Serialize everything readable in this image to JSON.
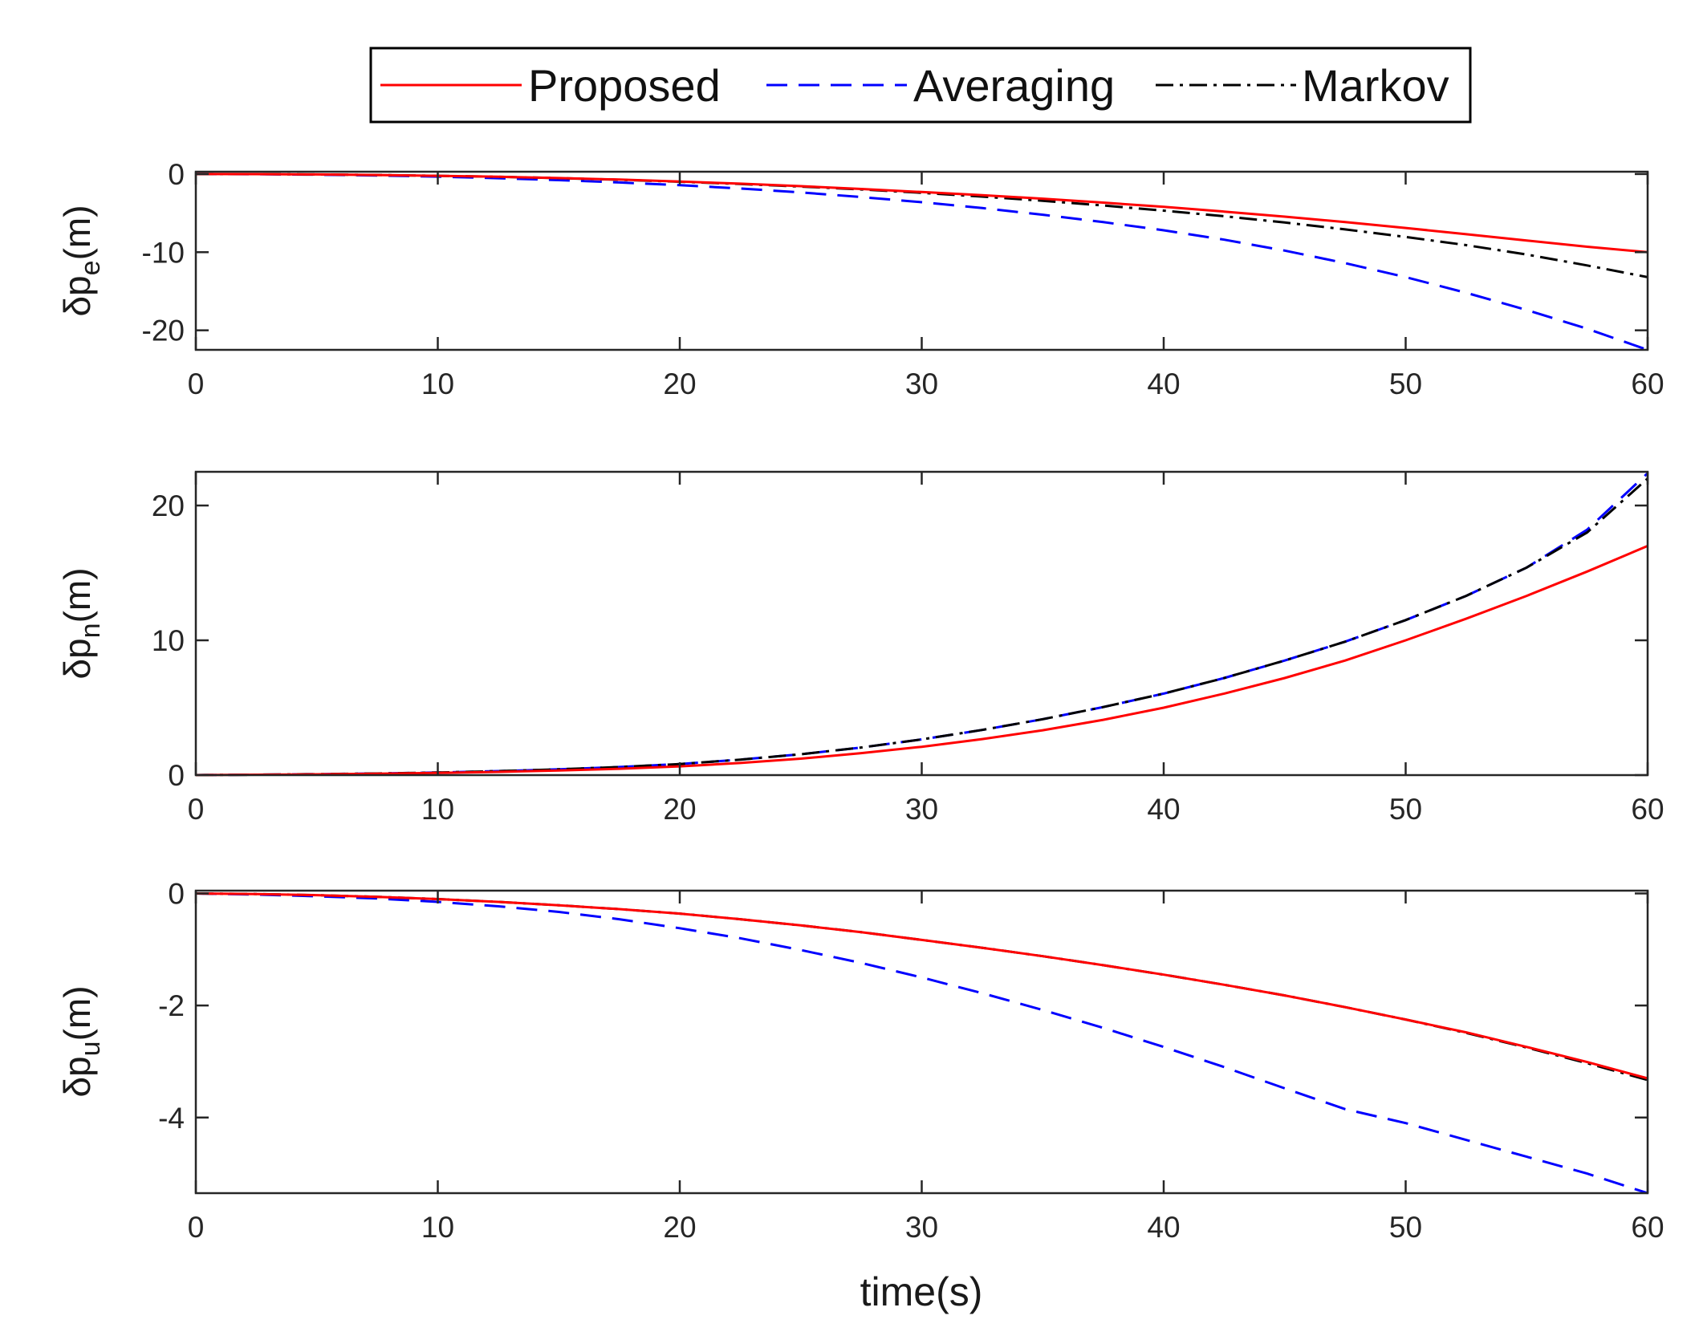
{
  "chart_data": {
    "type": "line",
    "legend": {
      "placement": "top-center",
      "entries": [
        {
          "name": "Proposed",
          "color": "#ff0000",
          "style": "solid"
        },
        {
          "name": "Averaging",
          "color": "#0000ff",
          "style": "dashed"
        },
        {
          "name": "Markov",
          "color": "#000000",
          "style": "dashdot"
        }
      ]
    },
    "x": [
      0,
      2.5,
      5,
      7.5,
      10,
      12.5,
      15,
      17.5,
      20,
      22.5,
      25,
      27.5,
      30,
      32.5,
      35,
      37.5,
      40,
      42.5,
      45,
      47.5,
      50,
      52.5,
      55,
      57.5,
      60
    ],
    "xlim": [
      0,
      60
    ],
    "xticks": [
      0,
      10,
      20,
      30,
      40,
      50,
      60
    ],
    "tick_labels_x": [
      "0",
      "10",
      "20",
      "30",
      "40",
      "50",
      "60"
    ],
    "xlabel": "time(s)",
    "subplots": [
      {
        "ylabel_main": "δp",
        "ylabel_sub": "e",
        "ylabel_unit": "(m)",
        "ylim": [
          -22.5,
          0.3
        ],
        "yticks": [
          0,
          -10,
          -20
        ],
        "tick_labels_y": [
          "0",
          "-10",
          "-20"
        ],
        "series": [
          {
            "name": "Proposed",
            "values": [
              0,
              -0.01,
              -0.05,
              -0.12,
              -0.22,
              -0.35,
              -0.51,
              -0.71,
              -0.95,
              -1.23,
              -1.55,
              -1.91,
              -2.3,
              -2.7,
              -3.15,
              -3.65,
              -4.2,
              -4.8,
              -5.45,
              -6.15,
              -6.9,
              -7.7,
              -8.5,
              -9.3,
              -10.0
            ]
          },
          {
            "name": "Averaging",
            "values": [
              0,
              -0.02,
              -0.08,
              -0.18,
              -0.33,
              -0.53,
              -0.78,
              -1.08,
              -1.43,
              -1.85,
              -2.35,
              -2.95,
              -3.6,
              -4.35,
              -5.2,
              -6.15,
              -7.2,
              -8.4,
              -9.8,
              -11.4,
              -13.2,
              -15.2,
              -17.4,
              -19.8,
              -22.5
            ]
          },
          {
            "name": "Markov",
            "values": [
              0,
              -0.01,
              -0.05,
              -0.12,
              -0.22,
              -0.35,
              -0.52,
              -0.73,
              -0.98,
              -1.27,
              -1.6,
              -1.97,
              -2.4,
              -2.88,
              -3.42,
              -4.02,
              -4.68,
              -5.4,
              -6.2,
              -7.08,
              -8.05,
              -9.1,
              -10.3,
              -11.7,
              -13.2
            ]
          }
        ]
      },
      {
        "ylabel_main": "δp",
        "ylabel_sub": "n",
        "ylabel_unit": "(m)",
        "ylim": [
          0,
          22.5
        ],
        "yticks": [
          0,
          10,
          20
        ],
        "tick_labels_y": [
          "0",
          "10",
          "20"
        ],
        "series": [
          {
            "name": "Proposed",
            "values": [
              0,
              0.03,
              0.06,
              0.1,
              0.16,
              0.24,
              0.34,
              0.47,
              0.65,
              0.9,
              1.22,
              1.63,
              2.1,
              2.67,
              3.33,
              4.1,
              5.0,
              6.05,
              7.2,
              8.5,
              10.0,
              11.6,
              13.3,
              15.1,
              17.0
            ]
          },
          {
            "name": "Averaging",
            "values": [
              0,
              0.03,
              0.07,
              0.12,
              0.19,
              0.3,
              0.43,
              0.6,
              0.82,
              1.15,
              1.55,
              2.05,
              2.65,
              3.35,
              4.15,
              5.05,
              6.05,
              7.2,
              8.5,
              9.9,
              11.5,
              13.3,
              15.4,
              18.2,
              22.4
            ]
          },
          {
            "name": "Markov",
            "values": [
              0,
              0.03,
              0.07,
              0.12,
              0.19,
              0.3,
              0.43,
              0.6,
              0.82,
              1.15,
              1.55,
              2.05,
              2.65,
              3.35,
              4.15,
              5.05,
              6.05,
              7.2,
              8.5,
              9.9,
              11.5,
              13.3,
              15.4,
              18.0,
              22.0
            ]
          }
        ]
      },
      {
        "ylabel_main": "δp",
        "ylabel_sub": "u",
        "ylabel_unit": "(m)",
        "ylim": [
          -5.35,
          0.05
        ],
        "yticks": [
          0,
          -2,
          -4
        ],
        "tick_labels_y": [
          "0",
          "-2",
          "-4"
        ],
        "series": [
          {
            "name": "Proposed",
            "values": [
              0,
              -0.01,
              -0.03,
              -0.06,
              -0.1,
              -0.15,
              -0.21,
              -0.28,
              -0.36,
              -0.46,
              -0.57,
              -0.69,
              -0.83,
              -0.97,
              -1.12,
              -1.28,
              -1.45,
              -1.63,
              -1.82,
              -2.03,
              -2.25,
              -2.48,
              -2.74,
              -3.01,
              -3.3
            ]
          },
          {
            "name": "Averaging",
            "values": [
              0,
              -0.02,
              -0.05,
              -0.09,
              -0.15,
              -0.23,
              -0.33,
              -0.46,
              -0.62,
              -0.8,
              -1.01,
              -1.24,
              -1.5,
              -1.78,
              -2.08,
              -2.4,
              -2.74,
              -3.1,
              -3.48,
              -3.85,
              -4.1,
              -4.4,
              -4.7,
              -5.0,
              -5.35
            ]
          },
          {
            "name": "Markov",
            "values": [
              0,
              -0.01,
              -0.03,
              -0.06,
              -0.1,
              -0.15,
              -0.21,
              -0.28,
              -0.36,
              -0.46,
              -0.57,
              -0.69,
              -0.83,
              -0.97,
              -1.12,
              -1.28,
              -1.45,
              -1.63,
              -1.82,
              -2.03,
              -2.25,
              -2.49,
              -2.75,
              -3.03,
              -3.33
            ]
          }
        ]
      }
    ]
  }
}
